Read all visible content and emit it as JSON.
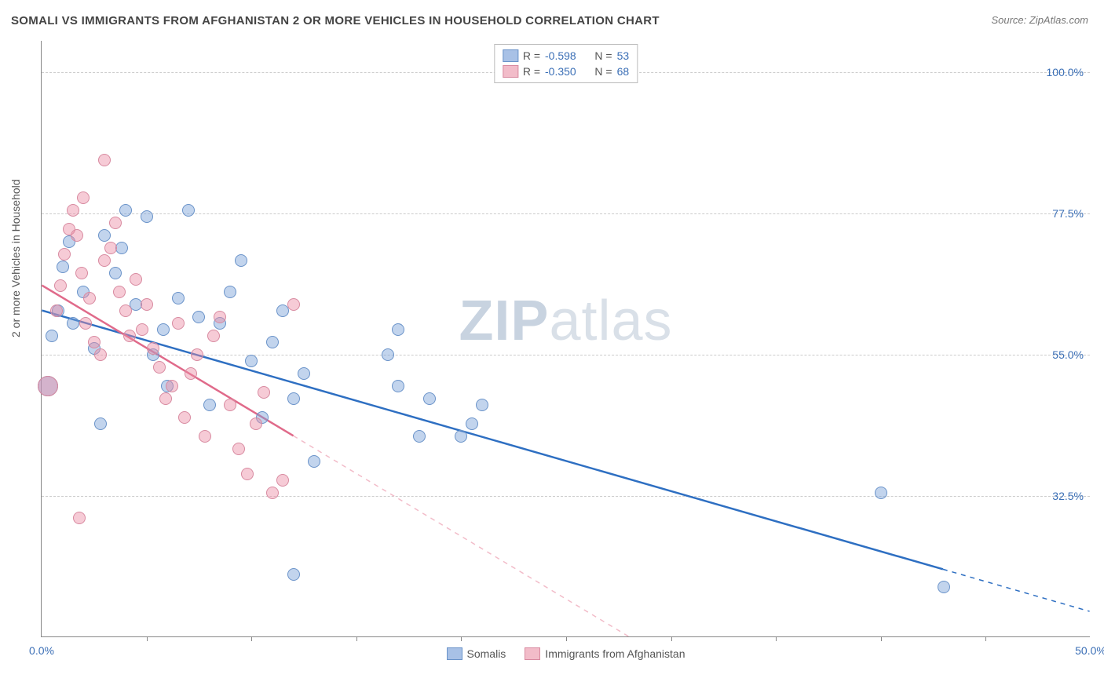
{
  "title": "SOMALI VS IMMIGRANTS FROM AFGHANISTAN 2 OR MORE VEHICLES IN HOUSEHOLD CORRELATION CHART",
  "source": "Source: ZipAtlas.com",
  "ylabel": "2 or more Vehicles in Household",
  "watermark_bold": "ZIP",
  "watermark_light": "atlas",
  "chart": {
    "type": "scatter",
    "xlim": [
      0,
      50
    ],
    "ylim": [
      10,
      105
    ],
    "xtick_labels": [
      {
        "v": 0,
        "label": "0.0%"
      },
      {
        "v": 50,
        "label": "50.0%"
      }
    ],
    "xtick_marks": [
      5,
      10,
      15,
      20,
      25,
      30,
      35,
      40,
      45
    ],
    "ytick_labels": [
      {
        "v": 32.5,
        "label": "32.5%"
      },
      {
        "v": 55.0,
        "label": "55.0%"
      },
      {
        "v": 77.5,
        "label": "77.5%"
      },
      {
        "v": 100.0,
        "label": "100.0%"
      }
    ],
    "grid_color": "#cccccc",
    "background_color": "#ffffff",
    "point_radius": 8,
    "point_radius_large": 13,
    "series": [
      {
        "name": "Somalis",
        "fill": "rgba(120,160,215,0.45)",
        "stroke": "#6a93c9",
        "swatch_fill": "#a8c1e6",
        "swatch_border": "#6a93c9",
        "trend_color": "#2e6fc2",
        "trend_dash_color": "#2e6fc2",
        "R_label": "R =",
        "R": "-0.598",
        "N_label": "N =",
        "N": "53",
        "trend": {
          "x1": 0,
          "y1": 62,
          "x2": 50,
          "y2": 14
        },
        "points": [
          [
            0.3,
            50,
            "large"
          ],
          [
            0.5,
            58
          ],
          [
            0.8,
            62
          ],
          [
            1.0,
            69
          ],
          [
            1.3,
            73
          ],
          [
            1.5,
            60
          ],
          [
            2.0,
            65
          ],
          [
            2.5,
            56
          ],
          [
            2.8,
            44
          ],
          [
            3.0,
            74
          ],
          [
            3.5,
            68
          ],
          [
            3.8,
            72
          ],
          [
            4.0,
            78
          ],
          [
            4.5,
            63
          ],
          [
            5.0,
            77
          ],
          [
            5.3,
            55
          ],
          [
            5.8,
            59
          ],
          [
            6.0,
            50
          ],
          [
            6.5,
            64
          ],
          [
            7.0,
            78
          ],
          [
            7.5,
            61
          ],
          [
            8.0,
            47
          ],
          [
            8.5,
            60
          ],
          [
            9.0,
            65
          ],
          [
            9.5,
            70
          ],
          [
            10.0,
            54
          ],
          [
            10.5,
            45
          ],
          [
            11.0,
            57
          ],
          [
            11.5,
            62
          ],
          [
            12.0,
            48
          ],
          [
            12.5,
            52
          ],
          [
            13.0,
            38
          ],
          [
            16.5,
            55
          ],
          [
            17.0,
            50
          ],
          [
            18.0,
            42
          ],
          [
            18.5,
            48
          ],
          [
            20.0,
            42
          ],
          [
            20.5,
            44
          ],
          [
            21.0,
            47
          ],
          [
            17.0,
            59
          ],
          [
            12.0,
            20
          ],
          [
            40.0,
            33
          ],
          [
            43.0,
            18
          ]
        ]
      },
      {
        "name": "Immigrants from Afghanistan",
        "fill": "rgba(235,140,165,0.45)",
        "stroke": "#d88aa0",
        "swatch_fill": "#f2bcc9",
        "swatch_border": "#d88aa0",
        "trend_color": "#e06a8a",
        "trend_dash_color": "#f2bcc9",
        "R_label": "R =",
        "R": "-0.350",
        "N_label": "N =",
        "N": "68",
        "trend": {
          "x1": 0,
          "y1": 66,
          "x2": 28,
          "y2": 10
        },
        "points": [
          [
            0.7,
            62
          ],
          [
            0.9,
            66
          ],
          [
            1.1,
            71
          ],
          [
            1.3,
            75
          ],
          [
            1.5,
            78
          ],
          [
            1.7,
            74
          ],
          [
            1.9,
            68
          ],
          [
            2.1,
            60
          ],
          [
            2.3,
            64
          ],
          [
            2.5,
            57
          ],
          [
            2.8,
            55
          ],
          [
            3.0,
            70
          ],
          [
            3.3,
            72
          ],
          [
            3.5,
            76
          ],
          [
            3.0,
            86
          ],
          [
            3.7,
            65
          ],
          [
            4.0,
            62
          ],
          [
            4.2,
            58
          ],
          [
            4.5,
            67
          ],
          [
            4.8,
            59
          ],
          [
            5.0,
            63
          ],
          [
            5.3,
            56
          ],
          [
            5.6,
            53
          ],
          [
            5.9,
            48
          ],
          [
            6.2,
            50
          ],
          [
            2.0,
            80
          ],
          [
            6.5,
            60
          ],
          [
            6.8,
            45
          ],
          [
            7.1,
            52
          ],
          [
            7.4,
            55
          ],
          [
            7.8,
            42
          ],
          [
            8.2,
            58
          ],
          [
            8.5,
            61
          ],
          [
            1.8,
            29
          ],
          [
            9.0,
            47
          ],
          [
            9.4,
            40
          ],
          [
            9.8,
            36
          ],
          [
            10.2,
            44
          ],
          [
            10.6,
            49
          ],
          [
            11.0,
            33
          ],
          [
            11.5,
            35
          ],
          [
            12.0,
            63
          ],
          [
            0.3,
            50,
            "large"
          ]
        ]
      }
    ],
    "legend_bottom": [
      {
        "label": "Somalis",
        "series": 0
      },
      {
        "label": "Immigrants from Afghanistan",
        "series": 1
      }
    ]
  }
}
